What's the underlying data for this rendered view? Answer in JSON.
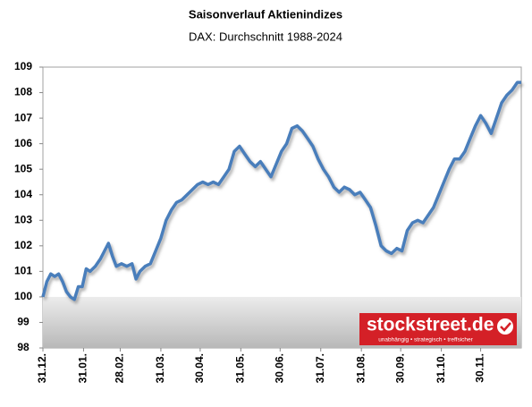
{
  "chart_data": {
    "type": "line",
    "title": "Saisonverlauf Aktienindizes",
    "subtitle": "DAX: Durchschnitt 1988-2024",
    "x": [
      0,
      3,
      6,
      9,
      12,
      15,
      18,
      21,
      24,
      27,
      30,
      33,
      36,
      40,
      44,
      47,
      50,
      53,
      56,
      60,
      64,
      68,
      71,
      74,
      78,
      82,
      86,
      90,
      94,
      98,
      102,
      106,
      110,
      114,
      118,
      122,
      126,
      130,
      134,
      138,
      142,
      146,
      150,
      154,
      158,
      162,
      166,
      170,
      174,
      178,
      182,
      186,
      190,
      194,
      198,
      202,
      206,
      210,
      214,
      218,
      222,
      226,
      230,
      234,
      238,
      242,
      246,
      250,
      254,
      258,
      262,
      266,
      270,
      274,
      278,
      282,
      286,
      290,
      294,
      298,
      302,
      306,
      310,
      314,
      318,
      322,
      326,
      330,
      334,
      338,
      342,
      346,
      350,
      354,
      358,
      362,
      365
    ],
    "series": [
      {
        "name": "DAX",
        "color": "#4a7ebb",
        "values": [
          100.0,
          100.6,
          100.9,
          100.8,
          100.9,
          100.6,
          100.2,
          100.0,
          99.9,
          100.4,
          100.4,
          101.1,
          101.0,
          101.2,
          101.5,
          101.8,
          102.1,
          101.6,
          101.2,
          101.3,
          101.2,
          101.3,
          100.7,
          101.0,
          101.2,
          101.3,
          101.8,
          102.3,
          103.0,
          103.4,
          103.7,
          103.8,
          104.0,
          104.2,
          104.4,
          104.5,
          104.4,
          104.5,
          104.4,
          104.7,
          105.0,
          105.7,
          105.9,
          105.6,
          105.3,
          105.1,
          105.3,
          105.0,
          104.7,
          105.2,
          105.7,
          106.0,
          106.6,
          106.7,
          106.5,
          106.2,
          105.9,
          105.4,
          105.0,
          104.7,
          104.3,
          104.1,
          104.3,
          104.2,
          104.0,
          104.1,
          103.8,
          103.5,
          102.8,
          102.0,
          101.8,
          101.7,
          101.9,
          101.8,
          102.6,
          102.9,
          103.0,
          102.9,
          103.2,
          103.5,
          104.0,
          104.5,
          105.0,
          105.4,
          105.4,
          105.7,
          106.2,
          106.7,
          107.1,
          106.8,
          106.4,
          107.0,
          107.6,
          107.9,
          108.1,
          108.4,
          108.4
        ]
      }
    ],
    "xlim": [
      0,
      365
    ],
    "xticks": [
      {
        "value": 0,
        "label": "31.12."
      },
      {
        "value": 31,
        "label": "31.01."
      },
      {
        "value": 59,
        "label": "28.02."
      },
      {
        "value": 90,
        "label": "31.03."
      },
      {
        "value": 120,
        "label": "30.04."
      },
      {
        "value": 151,
        "label": "31.05."
      },
      {
        "value": 181,
        "label": "30.06."
      },
      {
        "value": 212,
        "label": "31.07."
      },
      {
        "value": 243,
        "label": "31.08."
      },
      {
        "value": 273,
        "label": "30.09."
      },
      {
        "value": 304,
        "label": "31.10."
      },
      {
        "value": 334,
        "label": "30.11."
      }
    ],
    "ylim": [
      98,
      109
    ],
    "yticks": [
      98,
      99,
      100,
      101,
      102,
      103,
      104,
      105,
      106,
      107,
      108,
      109
    ],
    "baseline": 100
  },
  "logo": {
    "name": "stockstreet.de",
    "tagline": "unabhängig • strategisch • treffsicher"
  }
}
